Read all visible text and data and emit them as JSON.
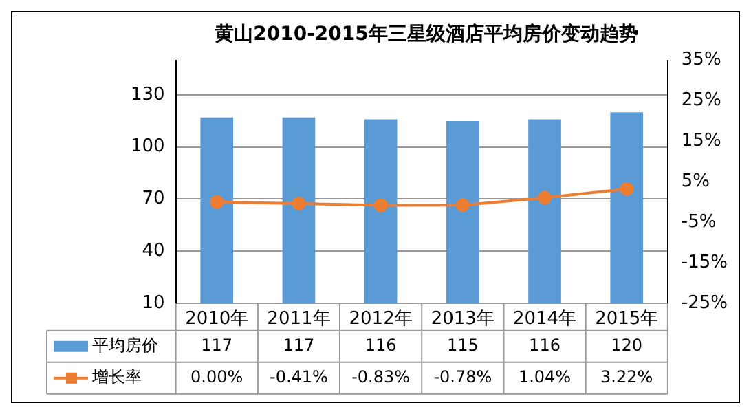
{
  "chart_data": {
    "type": "bar",
    "title": "黄山2010-2015年三星级酒店平均房价变动趋势",
    "categories": [
      "2010年",
      "2011年",
      "2012年",
      "2013年",
      "2014年",
      "2015年"
    ],
    "series": [
      {
        "name": "平均房价",
        "color": "#5b9bd5",
        "values": [
          117,
          117,
          116,
          115,
          116,
          120
        ],
        "value_labels": [
          "117",
          "117",
          "116",
          "115",
          "116",
          "120"
        ]
      },
      {
        "name": "增长率",
        "type": "line",
        "axis": "y2",
        "color": "#ed7d31",
        "values": [
          0,
          -0.41,
          -0.83,
          -0.78,
          1.04,
          3.22
        ],
        "value_labels": [
          "0.00%",
          "-0.41%",
          "-0.83%",
          "-0.78%",
          "1.04%",
          "3.22%"
        ]
      }
    ],
    "ylim": [
      10,
      150
    ],
    "yticks": [
      10,
      40,
      70,
      100,
      130
    ],
    "y2lim": [
      -25,
      35
    ],
    "y2ticks": [
      {
        "value": -25,
        "label": "-25%"
      },
      {
        "value": -15,
        "label": "-15%"
      },
      {
        "value": -5,
        "label": "-5%"
      },
      {
        "value": 5,
        "label": "5%"
      },
      {
        "value": 15,
        "label": "15%"
      },
      {
        "value": 25,
        "label": "25%"
      },
      {
        "value": 35,
        "label": "35%"
      }
    ],
    "grid": "y",
    "legend": "bottom left",
    "marker": "circle"
  }
}
